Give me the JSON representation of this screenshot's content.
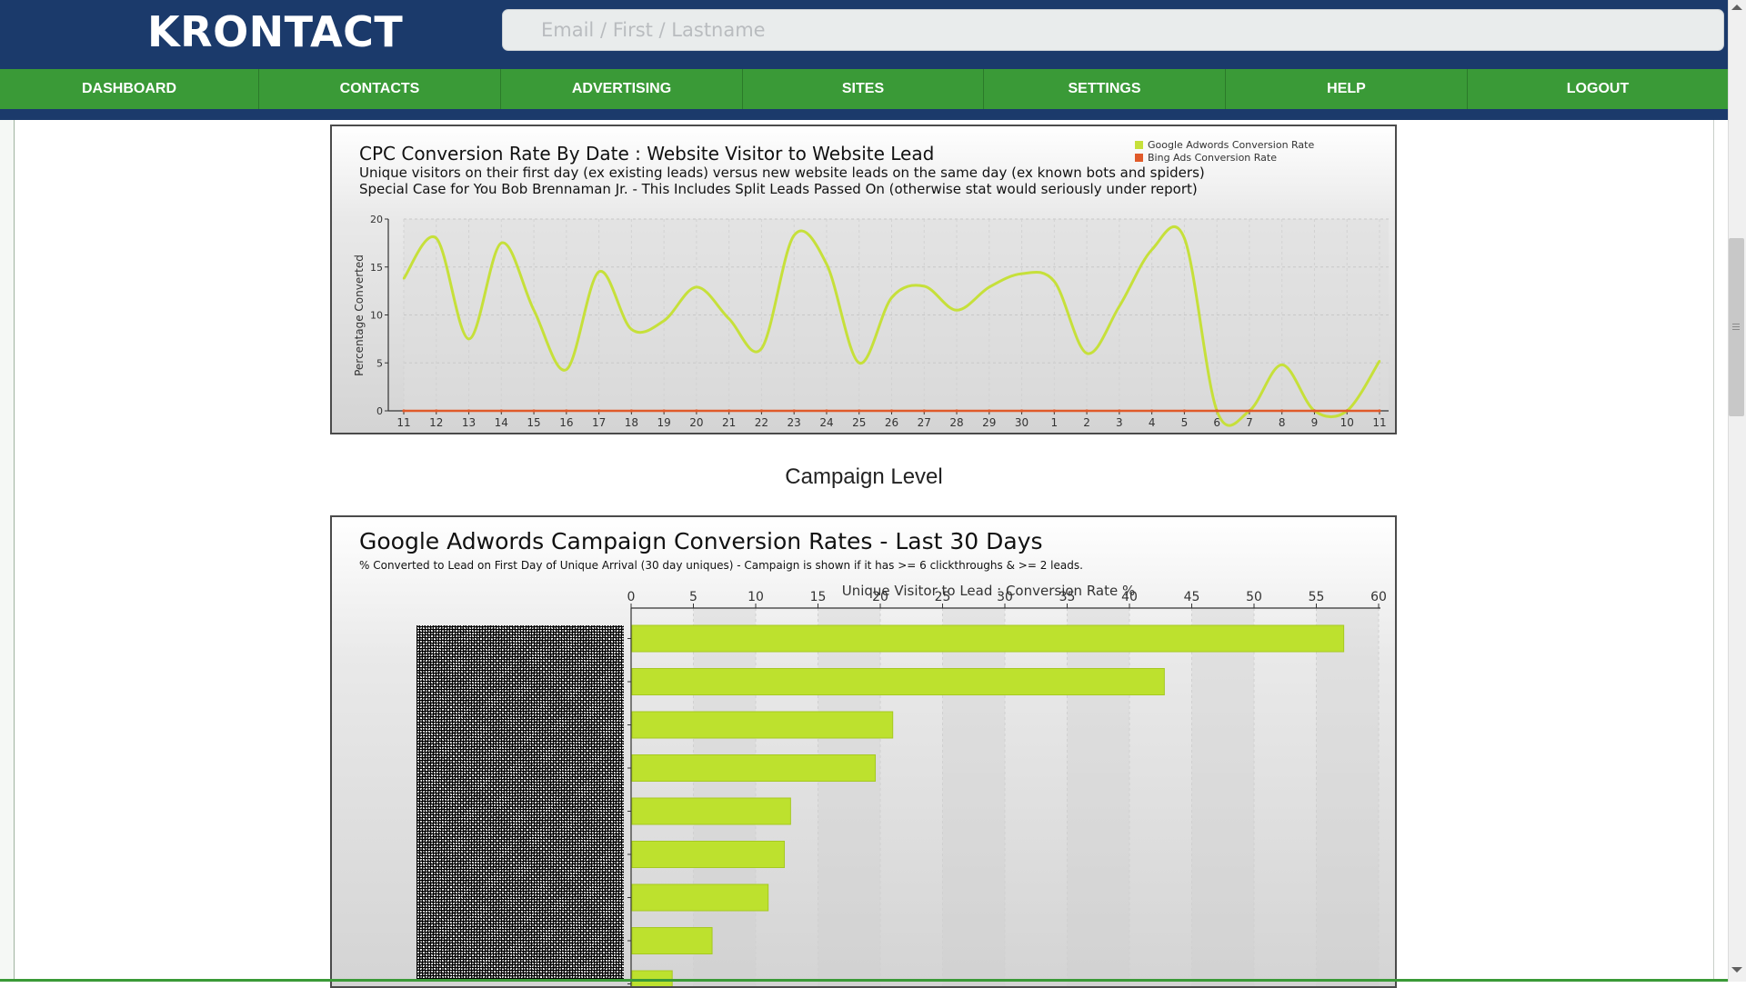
{
  "app": {
    "logo": "KRONTACT"
  },
  "search": {
    "placeholder": "Email / First / Lastname"
  },
  "nav": {
    "items": [
      {
        "label": "DASHBOARD"
      },
      {
        "label": "CONTACTS"
      },
      {
        "label": "ADVERTISING"
      },
      {
        "label": "SITES"
      },
      {
        "label": "SETTINGS"
      },
      {
        "label": "HELP"
      },
      {
        "label": "LOGOUT"
      }
    ]
  },
  "section": {
    "campaign_label": "Campaign Level"
  },
  "colors": {
    "navy": "#1b3a6b",
    "green": "#3a9a37",
    "lime": "#b8e02c",
    "orange": "#e05a2a"
  },
  "chart_data": [
    {
      "type": "line",
      "title": "CPC Conversion Rate By Date : Website Visitor to Website Lead",
      "subtitle_1": "Unique visitors on their first day (ex existing leads) versus new website leads on the same day (ex known bots and spiders)",
      "subtitle_2": "Special Case for You Bob Brennaman Jr. - This Includes Split Leads Passed On (otherwise stat would seriously under report)",
      "ylabel": "Percentage Converted",
      "ylim": [
        0,
        20
      ],
      "yticks": [
        0,
        5,
        10,
        15,
        20
      ],
      "legend": [
        "Google Adwords Conversion Rate",
        "Bing Ads Conversion Rate"
      ],
      "legend_position": "top-right",
      "x": [
        "11",
        "12",
        "13",
        "14",
        "15",
        "16",
        "17",
        "18",
        "19",
        "20",
        "21",
        "22",
        "23",
        "24",
        "25",
        "26",
        "27",
        "28",
        "29",
        "30",
        "1",
        "2",
        "3",
        "4",
        "5",
        "6",
        "7",
        "8",
        "9",
        "10",
        "11"
      ],
      "series": [
        {
          "name": "Google Adwords Conversion Rate",
          "color": "#c6e03a",
          "values": [
            13.8,
            18.0,
            7.5,
            17.5,
            10.5,
            4.3,
            14.5,
            8.5,
            9.4,
            12.9,
            9.6,
            6.5,
            18.3,
            15.3,
            5.0,
            11.8,
            13.0,
            10.5,
            12.9,
            14.3,
            13.5,
            6.0,
            10.9,
            16.8,
            18.0,
            0,
            0,
            4.8,
            0,
            0,
            5.2
          ]
        },
        {
          "name": "Bing Ads Conversion Rate",
          "color": "#e05a2a",
          "values": [
            0,
            0,
            0,
            0,
            0,
            0,
            0,
            0,
            0,
            0,
            0,
            0,
            0,
            0,
            0,
            0,
            0,
            0,
            0,
            0,
            0,
            0,
            0,
            0,
            0,
            0,
            0,
            0,
            0,
            0,
            0
          ]
        }
      ]
    },
    {
      "type": "bar",
      "orientation": "horizontal",
      "title": "Google Adwords Campaign Conversion Rates - Last 30 Days",
      "subtitle": "% Converted to Lead on First Day of Unique Arrival (30 day uniques) - Campaign is shown if it has >= 6 clickthroughs & >= 2 leads.",
      "xlabel": "Unique Visitor to Lead : Conversion Rate %",
      "xlim": [
        0,
        60
      ],
      "xticks": [
        0,
        5,
        10,
        15,
        20,
        25,
        30,
        35,
        40,
        45,
        50,
        55,
        60
      ],
      "values": [
        57.2,
        42.8,
        21.0,
        19.6,
        12.8,
        12.3,
        11.0,
        6.5,
        3.3
      ]
    }
  ]
}
